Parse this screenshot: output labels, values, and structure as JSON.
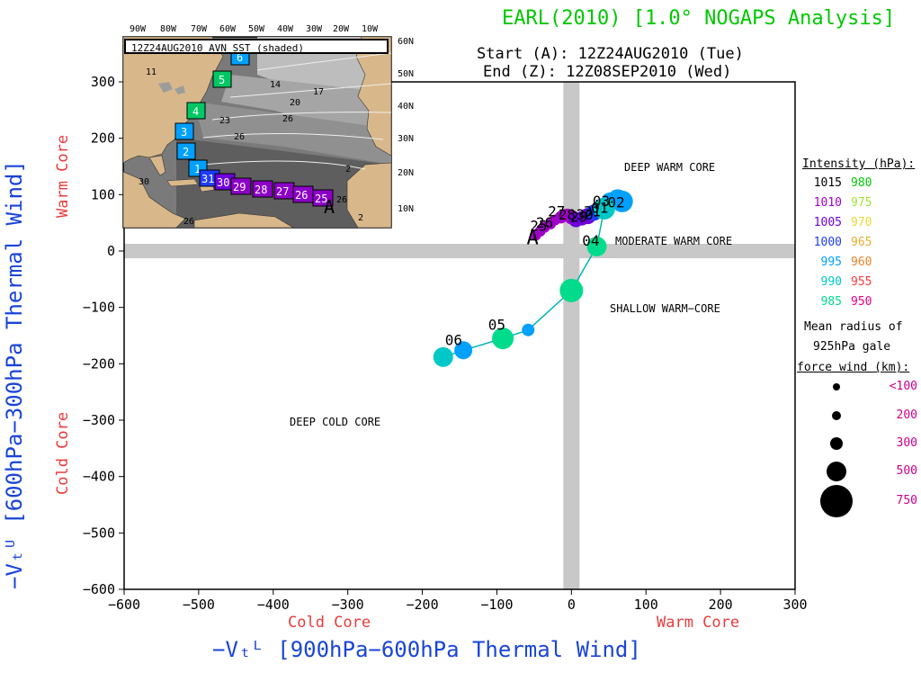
{
  "header": {
    "title": "EARL(2010) [1.0° NOGAPS Analysis]",
    "start": "Start (A): 12Z24AUG2010 (Tue)",
    "end": "End (Z): 12Z08SEP2010 (Wed)"
  },
  "axes": {
    "xlabel": "−Vₜᴸ [900hPa−600hPa Thermal Wind]",
    "ylabel": "−Vₜᵁ [600hPa−300hPa Thermal Wind]",
    "x_cold": "Cold Core",
    "x_warm": "Warm Core",
    "y_cold": "Cold Core",
    "y_warm": "Warm Core"
  },
  "quadrants": {
    "deep_warm": "DEEP WARM CORE",
    "moderate_warm": "MODERATE WARM CORE",
    "shallow_warm": "SHALLOW WARM−CORE",
    "deep_cold": "DEEP COLD CORE"
  },
  "legend": {
    "intensity_title": "Intensity (hPa):",
    "intensity_rows": [
      {
        "left": "1015",
        "left_color": "#000000",
        "right": "980",
        "right_color": "#00c800"
      },
      {
        "left": "1010",
        "left_color": "#a000c8",
        "right": "975",
        "right_color": "#a0e632"
      },
      {
        "left": "1005",
        "left_color": "#6e00dc",
        "right": "970",
        "right_color": "#e6dc32"
      },
      {
        "left": "1000",
        "left_color": "#1e3cff",
        "right": "965",
        "right_color": "#e6af2d"
      },
      {
        "left": "995",
        "left_color": "#00a0ff",
        "right": "960",
        "right_color": "#f08228"
      },
      {
        "left": "990",
        "left_color": "#00c8c8",
        "right": "955",
        "right_color": "#fa3c3c"
      },
      {
        "left": "985",
        "left_color": "#00dc8c",
        "right": "950",
        "right_color": "#f00082"
      }
    ],
    "radius_title_1": "Mean radius of",
    "radius_title_2": "925hPa gale",
    "radius_title_3": "force wind (km):",
    "radius_rows": [
      "<100",
      "200",
      "300",
      "500",
      "750"
    ]
  },
  "inset": {
    "caption": "12Z24AUG2010 AVN SST (shaded)",
    "lon_labels": [
      "90W",
      "80W",
      "70W",
      "60W",
      "50W",
      "40W",
      "30W",
      "20W",
      "10W"
    ],
    "lat_labels": [
      "60N",
      "50N",
      "40N",
      "30N",
      "20N",
      "10N"
    ],
    "sst_labels": [
      "14",
      "17",
      "20",
      "23",
      "26",
      "30",
      "11",
      "26",
      "26",
      "2",
      "2",
      "26"
    ],
    "track_labels": [
      "6",
      "5",
      "4",
      "3",
      "2",
      "1",
      "31",
      "30",
      "29",
      "28",
      "27",
      "26",
      "25"
    ],
    "track_start": "A"
  },
  "chart_data": {
    "type": "scatter",
    "title": "EARL(2010) [1.0° NOGAPS Analysis]",
    "xlabel": "−Vₜᴸ [900hPa−600hPa Thermal Wind]",
    "ylabel": "−Vₜᵁ [600hPa−300hPa Thermal Wind]",
    "xlim": [
      -600,
      300
    ],
    "ylim": [
      -600,
      300
    ],
    "xticks": [
      -600,
      -500,
      -400,
      -300,
      -200,
      -100,
      0,
      100,
      200,
      300
    ],
    "yticks": [
      -600,
      -500,
      -400,
      -300,
      -200,
      -100,
      0,
      100,
      200,
      300
    ],
    "xtick_labels": [
      "−600",
      "−500",
      "−400",
      "−300",
      "−200",
      "−100",
      "0",
      "100",
      "200",
      "300"
    ],
    "ytick_labels": [
      "−600",
      "−500",
      "−400",
      "−300",
      "−200",
      "−100",
      "0",
      "100",
      "200",
      "300"
    ],
    "track": [
      {
        "x": -48,
        "y": 28,
        "color": "#a000c8",
        "r": 6
      },
      {
        "x": -42,
        "y": 35,
        "color": "#a000c8",
        "r": 6
      },
      {
        "x": -36,
        "y": 42,
        "color": "#a000c8",
        "r": 6
      },
      {
        "x": -28,
        "y": 48,
        "color": "#a000c8",
        "r": 6
      },
      {
        "x": -22,
        "y": 55,
        "color": "#a000c8",
        "r": 6
      },
      {
        "x": -14,
        "y": 60,
        "color": "#a000c8",
        "r": 7
      },
      {
        "x": -6,
        "y": 64,
        "color": "#a000c8",
        "r": 7
      },
      {
        "x": 0,
        "y": 60,
        "color": "#a000c8",
        "r": 8
      },
      {
        "x": 6,
        "y": 55,
        "color": "#6e00dc",
        "r": 8
      },
      {
        "x": 14,
        "y": 58,
        "color": "#6e00dc",
        "r": 8
      },
      {
        "x": 22,
        "y": 62,
        "color": "#6e00dc",
        "r": 9
      },
      {
        "x": 30,
        "y": 68,
        "color": "#1e3cff",
        "r": 9
      },
      {
        "x": 42,
        "y": 78,
        "color": "#1e3cff",
        "r": 10
      },
      {
        "x": 52,
        "y": 88,
        "color": "#00a0ff",
        "r": 10
      },
      {
        "x": 62,
        "y": 92,
        "color": "#00a0ff",
        "r": 11
      },
      {
        "x": 68,
        "y": 88,
        "color": "#00a0ff",
        "r": 12
      },
      {
        "x": 44,
        "y": 75,
        "color": "#00c8c8",
        "r": 12
      },
      {
        "x": 34,
        "y": 8,
        "color": "#00dc8c",
        "r": 11
      },
      {
        "x": 0,
        "y": -70,
        "color": "#00dc8c",
        "r": 13
      },
      {
        "x": -58,
        "y": -140,
        "color": "#00a0ff",
        "r": 7
      },
      {
        "x": -92,
        "y": -155,
        "color": "#00dc8c",
        "r": 12
      },
      {
        "x": -145,
        "y": -176,
        "color": "#00a0ff",
        "r": 10
      },
      {
        "x": -172,
        "y": -188,
        "color": "#00c8c8",
        "r": 11
      }
    ],
    "point_labels": [
      {
        "text": "A",
        "x": -48,
        "y": 28
      },
      {
        "text": "25",
        "x": -46,
        "y": 42
      },
      {
        "text": "26",
        "x": -38,
        "y": 48
      },
      {
        "text": "27",
        "x": -22,
        "y": 68
      },
      {
        "text": "28",
        "x": -8,
        "y": 62
      },
      {
        "text": "29",
        "x": 8,
        "y": 58
      },
      {
        "text": "30",
        "x": 16,
        "y": 62
      },
      {
        "text": "31",
        "x": 26,
        "y": 68
      },
      {
        "text": "01",
        "x": 36,
        "y": 74
      },
      {
        "text": "02",
        "x": 58,
        "y": 84
      },
      {
        "text": "03",
        "x": 38,
        "y": 86
      },
      {
        "text": "04",
        "x": 24,
        "y": 16
      },
      {
        "text": "05",
        "x": -102,
        "y": -133
      },
      {
        "text": "06",
        "x": -160,
        "y": -160
      }
    ]
  }
}
